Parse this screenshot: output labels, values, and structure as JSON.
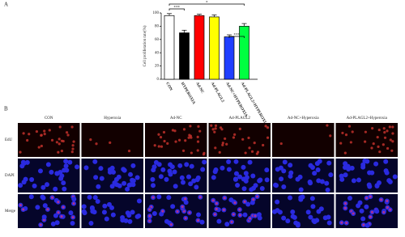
{
  "panel_a_label": "A",
  "panel_b_label": "B",
  "chart_data": {
    "type": "bar",
    "ylabel": "Cell proliferation rate(%)",
    "categories": [
      "CON",
      "HYPEROXIA",
      "Ad-NC",
      "Ad-PLAGL2",
      "Ad-NC+HYPEROXIA",
      "Ad-PLAGL2+HYPEROXIA"
    ],
    "values": [
      96,
      70,
      96,
      94,
      64,
      80
    ],
    "errors": [
      3,
      4,
      2,
      3,
      3,
      4
    ],
    "colors": [
      "#ffffff",
      "#000000",
      "#ff0000",
      "#ffff00",
      "#1f3fff",
      "#00ff40"
    ],
    "ylim": [
      0,
      100
    ],
    "yticks": [
      0,
      20,
      40,
      60,
      80,
      100
    ],
    "annotations": [
      "***",
      "*",
      "***"
    ]
  },
  "image_grid": {
    "columns": [
      "CON",
      "Hyperoxia",
      "Ad-NC",
      "Ad-PLAGL2",
      "Ad-NC+Hyperoxia",
      "Ad-PLAGL2+Hyperoxia"
    ],
    "rows": [
      "EdU",
      "DAPI",
      "Merge"
    ]
  }
}
